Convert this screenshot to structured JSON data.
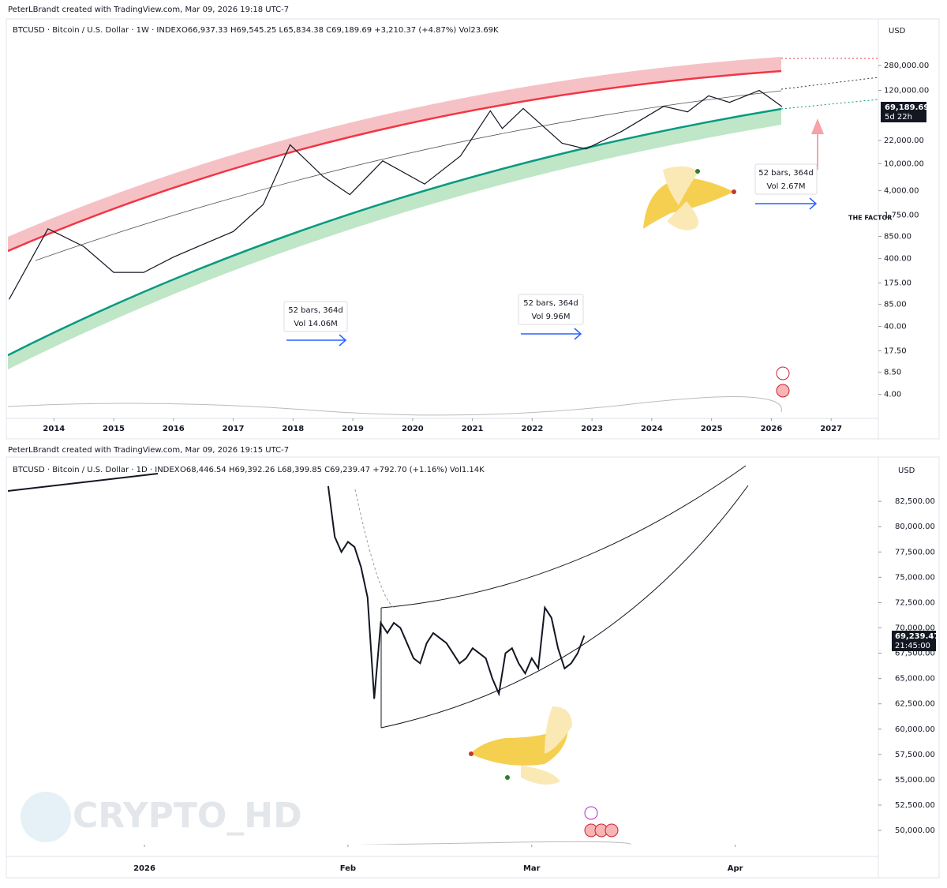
{
  "chart_data": [
    {
      "type": "line",
      "log_scale": true,
      "color": "#131722",
      "credit": "PeterLBrandt created with TradingView.com, Mar 09, 2026 19:18 UTC-7",
      "symbol": "BTCUSD · Bitcoin / U.S. Dollar · 1W · INDEX",
      "ohlc": "O66,937.33 H69,545.25 L65,834.38 C69,189.69 +3,210.37 (+4.87%) Vol23.69K",
      "currency": "USD",
      "price_tag": "69,189.69",
      "countdown": "5d 22h",
      "logo": "THE FACTOR",
      "annotations": [
        [
          "52 bars, 364d",
          "Vol 14.06M"
        ],
        [
          "52 bars, 364d",
          "Vol 9.96M"
        ],
        [
          "52 bars, 364d",
          "Vol 2.67M"
        ]
      ],
      "x": [
        2013.25,
        2013.9,
        2014.5,
        2015.0,
        2015.5,
        2016.0,
        2016.5,
        2017.0,
        2017.5,
        2017.95,
        2018.5,
        2018.95,
        2019.5,
        2020.2,
        2020.8,
        2021.3,
        2021.5,
        2021.85,
        2022.5,
        2022.9,
        2023.5,
        2024.2,
        2024.6,
        2024.95,
        2025.3,
        2025.8,
        2026.0,
        2026.18
      ],
      "values": [
        100,
        1100,
        600,
        250,
        250,
        420,
        650,
        1000,
        2500,
        19000,
        6500,
        3500,
        11000,
        5000,
        13000,
        60000,
        33000,
        65000,
        20000,
        16500,
        30000,
        70000,
        58000,
        100000,
        80000,
        120000,
        90000,
        69189.69
      ],
      "xlim": [
        2013.23,
        2027.79
      ],
      "xticks": [
        2014,
        2015,
        2016,
        2017,
        2018,
        2019,
        2020,
        2021,
        2022,
        2023,
        2024,
        2025,
        2026,
        2027
      ],
      "ylim": [
        1.77,
        1320000
      ],
      "yticks": [
        {
          "value": 280000,
          "label": "280,000.00"
        },
        {
          "value": 120000,
          "label": "120,000.00"
        },
        {
          "value": 22000,
          "label": "22,000.00"
        },
        {
          "value": 10000,
          "label": "10,000.00"
        },
        {
          "value": 4000,
          "label": "4,000.00"
        },
        {
          "value": 1750,
          "label": "1,750.00"
        },
        {
          "value": 850,
          "label": "850.00"
        },
        {
          "value": 400,
          "label": "400.00"
        },
        {
          "value": 175,
          "label": "175.00"
        },
        {
          "value": 85,
          "label": "85.00"
        },
        {
          "value": 40,
          "label": "40.00"
        },
        {
          "value": 17.5,
          "label": "17.50"
        },
        {
          "value": 8.5,
          "label": "8.50"
        },
        {
          "value": 4,
          "label": "4.00"
        }
      ]
    },
    {
      "type": "line",
      "log_scale": false,
      "color": "#131722",
      "credit": "PeterLBrandt created with TradingView.com, Mar 09, 2026 19:15 UTC-7",
      "symbol": "BTCUSD · Bitcoin / U.S. Dollar · 1D · INDEX",
      "ohlc": "O68,446.54 H69,392.26 L68,399.85 C69,239.47 +792.70 (+1.16%) Vol1.14K",
      "currency": "USD",
      "price_tag": "69,239.47",
      "countdown": "21:45:00",
      "watermark": "CRYPTO_HD",
      "x": [
        29,
        30,
        31,
        32,
        33,
        34,
        35,
        36,
        37,
        38,
        39,
        40,
        41,
        42,
        43,
        44,
        45,
        46,
        47,
        48,
        49,
        50,
        51,
        52,
        53,
        54,
        55,
        56,
        57,
        58,
        59,
        60,
        61,
        62,
        63,
        64,
        65,
        66,
        67,
        68
      ],
      "values": [
        84000,
        79000,
        77500,
        78500,
        78000,
        76000,
        73000,
        63000,
        70500,
        69500,
        70500,
        70000,
        68500,
        67000,
        66500,
        68500,
        69500,
        69000,
        68500,
        67500,
        66500,
        67000,
        68000,
        67500,
        67000,
        65000,
        63500,
        67500,
        68000,
        66500,
        65500,
        67000,
        66000,
        72000,
        71000,
        68000,
        66000,
        66500,
        67500,
        69239.47
      ],
      "xlim": [
        -19.8,
        112.8
      ],
      "xticks": [
        {
          "value": 1,
          "label": "2026"
        },
        {
          "value": 32,
          "label": "Feb"
        },
        {
          "value": 60,
          "label": "Mar"
        },
        {
          "value": 91,
          "label": "Apr"
        }
      ],
      "ylim": [
        48600,
        86800
      ],
      "yticks": [
        {
          "value": 82500,
          "label": "82,500.00"
        },
        {
          "value": 80000,
          "label": "80,000.00"
        },
        {
          "value": 77500,
          "label": "77,500.00"
        },
        {
          "value": 75000,
          "label": "75,000.00"
        },
        {
          "value": 72500,
          "label": "72,500.00"
        },
        {
          "value": 70000,
          "label": "70,000.00"
        },
        {
          "value": 67500,
          "label": "67,500.00"
        },
        {
          "value": 65000,
          "label": "65,000.00"
        },
        {
          "value": 62500,
          "label": "62,500.00"
        },
        {
          "value": 60000,
          "label": "60,000.00"
        },
        {
          "value": 57500,
          "label": "57,500.00"
        },
        {
          "value": 55000,
          "label": "55,000.00"
        },
        {
          "value": 52500,
          "label": "52,500.00"
        },
        {
          "value": 50000,
          "label": "50,000.00"
        }
      ]
    }
  ]
}
